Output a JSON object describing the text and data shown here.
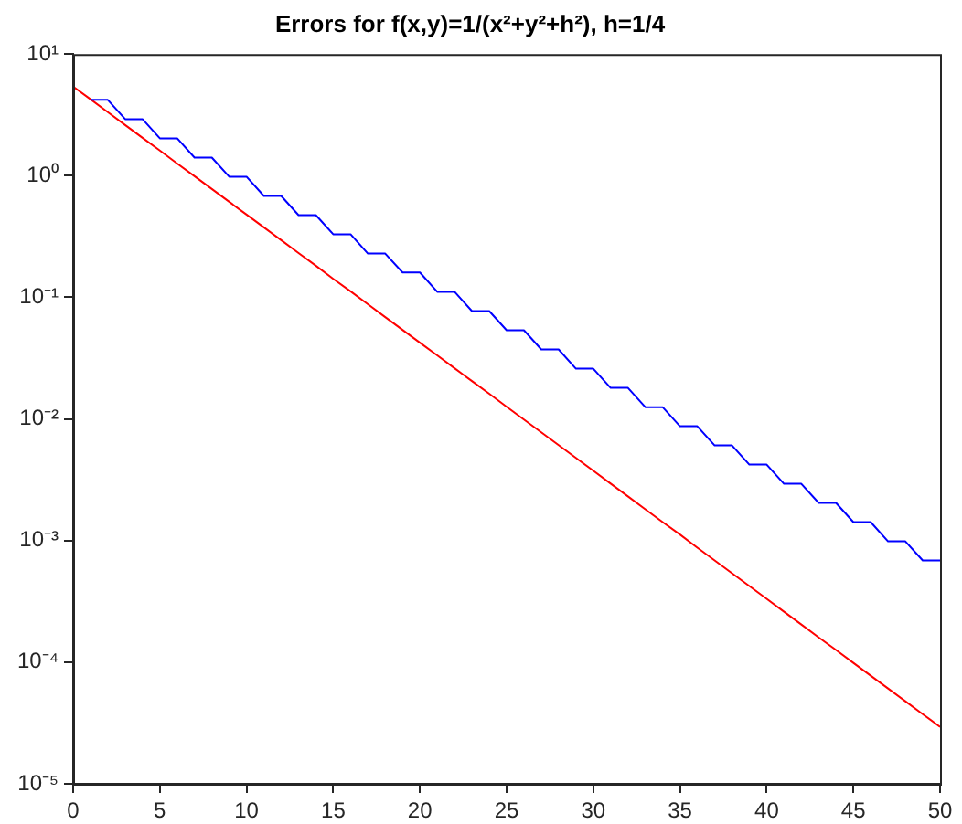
{
  "chart_data": {
    "type": "line",
    "title": "Errors for f(x,y)=1/(x²+y²+h²), h=1/4",
    "log": "y",
    "grid": false,
    "legend": false,
    "marker": "none",
    "line_style": "solid",
    "xlim": [
      0,
      50
    ],
    "xticks": [
      0,
      5,
      10,
      15,
      20,
      25,
      30,
      35,
      40,
      45,
      50
    ],
    "ylim": [
      1e-05,
      10
    ],
    "yticks": [
      {
        "value": 1e-05,
        "label": "10⁻⁵"
      },
      {
        "value": 0.0001,
        "label": "10⁻⁴"
      },
      {
        "value": 0.001,
        "label": "10⁻³"
      },
      {
        "value": 0.01,
        "label": "10⁻²"
      },
      {
        "value": 0.1,
        "label": "10⁻¹"
      },
      {
        "value": 1,
        "label": "10⁰"
      },
      {
        "value": 10,
        "label": "10¹"
      }
    ],
    "series": [
      {
        "color": "#0000ff",
        "x": [
          1,
          2,
          3,
          4,
          5,
          6,
          7,
          8,
          9,
          10,
          11,
          12,
          13,
          14,
          15,
          16,
          17,
          18,
          19,
          20,
          21,
          22,
          23,
          24,
          25,
          26,
          27,
          28,
          29,
          30,
          31,
          32,
          33,
          34,
          35,
          36,
          37,
          38,
          39,
          40,
          41,
          42,
          43,
          44,
          45,
          46,
          47,
          48,
          49,
          50
        ],
        "values": [
          4.2,
          4.2,
          2.92,
          2.92,
          2.03,
          2.03,
          1.41,
          1.41,
          0.982,
          0.982,
          0.682,
          0.682,
          0.474,
          0.474,
          0.33,
          0.33,
          0.229,
          0.229,
          0.16,
          0.16,
          0.111,
          0.111,
          0.0771,
          0.0771,
          0.0536,
          0.0536,
          0.0373,
          0.0373,
          0.0259,
          0.0259,
          0.018,
          0.018,
          0.0125,
          0.0125,
          0.00871,
          0.00871,
          0.00606,
          0.00606,
          0.00421,
          0.00421,
          0.00293,
          0.00293,
          0.00204,
          0.00204,
          0.00142,
          0.00142,
          0.000986,
          0.000986,
          0.000686,
          0.000686
        ]
      },
      {
        "color": "#ff0000",
        "x": [
          0,
          1,
          2,
          3,
          4,
          5,
          6,
          7,
          8,
          9,
          10,
          11,
          12,
          13,
          14,
          15,
          16,
          17,
          18,
          19,
          20,
          21,
          22,
          23,
          24,
          25,
          26,
          27,
          28,
          29,
          30,
          31,
          32,
          33,
          34,
          35,
          36,
          37,
          38,
          39,
          40,
          41,
          42,
          43,
          44,
          45,
          46,
          47,
          48,
          49,
          50
        ],
        "values": [
          5.41,
          4.25,
          3.33,
          2.61,
          2.05,
          1.61,
          1.26,
          0.991,
          0.778,
          0.61,
          0.479,
          0.376,
          0.295,
          0.231,
          0.182,
          0.142,
          0.112,
          0.0877,
          0.0688,
          0.054,
          0.0424,
          0.0333,
          0.0261,
          0.0205,
          0.0161,
          0.0126,
          0.00989,
          0.00776,
          0.00609,
          0.00478,
          0.00375,
          0.00294,
          0.00231,
          0.00181,
          0.00142,
          0.00112,
          0.000875,
          0.000687,
          0.000539,
          0.000423,
          0.000332,
          0.00026,
          0.000204,
          0.00016,
          0.000126,
          9.87e-05,
          7.75e-05,
          6.08e-05,
          4.77e-05,
          3.74e-05,
          2.94e-05
        ]
      }
    ]
  }
}
